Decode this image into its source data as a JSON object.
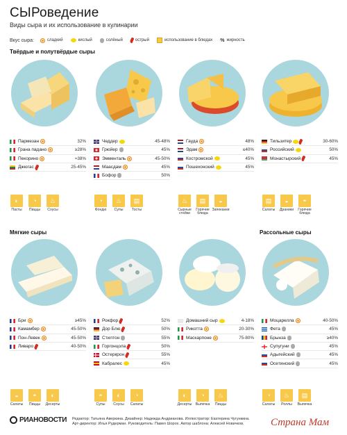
{
  "header": {
    "title": "СЫРоведение",
    "subtitle": "Виды сыра и их использование в кулинарии"
  },
  "legend": {
    "label": "Вкус сыра:",
    "sweet": "сладкий",
    "sour": "кислый",
    "salty": "солёный",
    "hot": "острый",
    "cooking": "использование в блюдах",
    "fat": "жирность"
  },
  "sections": {
    "hard": "Твёрдые и полутвёрдые сыры",
    "soft": "Мягкие сыры",
    "brine": "Рассольные сыры"
  },
  "groups": [
    {
      "id": "g1",
      "cheeses": [
        {
          "name": "Пармезан",
          "flag": "it",
          "tags": [
            "sweet"
          ],
          "fat": "32%"
        },
        {
          "name": "Грана падано",
          "flag": "it",
          "tags": [
            "sweet"
          ],
          "fat": "≥28%"
        },
        {
          "name": "Пекорино",
          "flag": "it",
          "tags": [
            "sweet"
          ],
          "fat": "≈38%"
        },
        {
          "name": "Джюгас",
          "flag": "lt",
          "tags": [
            "hot"
          ],
          "fat": "25-45%"
        }
      ],
      "uses": [
        "Пасты",
        "Пиццы",
        "Соусы"
      ]
    },
    {
      "id": "g2",
      "cheeses": [
        {
          "name": "Чеддер",
          "flag": "gb",
          "tags": [
            "sour"
          ],
          "fat": "45-48%"
        },
        {
          "name": "Грюйер",
          "flag": "ch",
          "tags": [
            "salty"
          ],
          "fat": "45%"
        },
        {
          "name": "Эмменталь",
          "flag": "ch",
          "tags": [
            "sweet"
          ],
          "fat": "45-50%"
        },
        {
          "name": "Маасдам",
          "flag": "nl",
          "tags": [
            "sweet"
          ],
          "fat": "45%"
        },
        {
          "name": "Бофор",
          "flag": "fr",
          "tags": [
            "salty"
          ],
          "fat": "50%"
        }
      ],
      "uses": [
        "Фондю",
        "Супы",
        "Тосты"
      ]
    },
    {
      "id": "g3",
      "cheeses": [
        {
          "name": "Гауда",
          "flag": "nl",
          "tags": [
            "sweet"
          ],
          "fat": "48%"
        },
        {
          "name": "Эдам",
          "flag": "nl",
          "tags": [
            "sweet"
          ],
          "fat": "≤40%"
        },
        {
          "name": "Костромской",
          "flag": "ru",
          "tags": [
            "sour"
          ],
          "fat": "45%"
        },
        {
          "name": "Пошехонский",
          "flag": "ru",
          "tags": [
            "sour"
          ],
          "fat": "45%"
        }
      ],
      "uses": [
        "Сырные стейки",
        "Горячие блюда",
        "Запеканки"
      ]
    },
    {
      "id": "g4",
      "cheeses": [
        {
          "name": "Тильзитер",
          "flag": "de",
          "tags": [
            "sour",
            "hot"
          ],
          "fat": "30-60%"
        },
        {
          "name": "Российский",
          "flag": "ru",
          "tags": [
            "sour"
          ],
          "fat": "50%"
        },
        {
          "name": "Монастырский",
          "flag": "by",
          "tags": [
            "hot"
          ],
          "fat": "45%"
        }
      ],
      "uses": [
        "Салаты",
        "Драники",
        "Горячие блюда"
      ]
    },
    {
      "id": "g5",
      "cheeses": [
        {
          "name": "Бри",
          "flag": "fr",
          "tags": [
            "sweet"
          ],
          "fat": "≥45%"
        },
        {
          "name": "Камамбер",
          "flag": "fr",
          "tags": [
            "sweet"
          ],
          "fat": "45-50%"
        },
        {
          "name": "Пон-Левек",
          "flag": "fr",
          "tags": [
            "sweet"
          ],
          "fat": "45-50%"
        },
        {
          "name": "Ливаро",
          "flag": "fr",
          "tags": [
            "hot"
          ],
          "fat": "40-50%"
        }
      ],
      "uses": [
        "Салаты",
        "Пиццы",
        "Десерты"
      ]
    },
    {
      "id": "g6",
      "cheeses": [
        {
          "name": "Рокфор",
          "flag": "fr",
          "tags": [
            "hot"
          ],
          "fat": "52%"
        },
        {
          "name": "Дор Блю",
          "flag": "de",
          "tags": [
            "hot"
          ],
          "fat": "50%"
        },
        {
          "name": "Стилтон",
          "flag": "gb",
          "tags": [
            "salty"
          ],
          "fat": "55%"
        },
        {
          "name": "Горгонцола",
          "flag": "it",
          "tags": [
            "hot"
          ],
          "fat": "50%"
        },
        {
          "name": "Остеркрон",
          "flag": "dk",
          "tags": [
            "hot"
          ],
          "fat": "55%"
        },
        {
          "name": "Кабралес",
          "flag": "es",
          "tags": [
            "sour"
          ],
          "fat": "45%"
        }
      ],
      "uses": [
        "Супы",
        "Соусы",
        "Салаты"
      ]
    },
    {
      "id": "g7",
      "cheeses": [
        {
          "name": "Домашний сыр",
          "flag": "none",
          "tags": [
            "sour"
          ],
          "fat": "4-18%"
        },
        {
          "name": "Рикотта",
          "flag": "it",
          "tags": [
            "sweet"
          ],
          "fat": "20-30%"
        },
        {
          "name": "Маскарпоне",
          "flag": "it",
          "tags": [
            "sweet"
          ],
          "fat": "75-80%"
        }
      ],
      "uses": [
        "Десерты",
        "Выпечка",
        "Пиццы"
      ]
    },
    {
      "id": "g8",
      "cheeses": [
        {
          "name": "Моцарелла",
          "flag": "it",
          "tags": [
            "sweet"
          ],
          "fat": "40-50%"
        },
        {
          "name": "Фета",
          "flag": "gr",
          "tags": [
            "salty"
          ],
          "fat": "45%"
        },
        {
          "name": "Брынза",
          "flag": "ro",
          "tags": [
            "salty"
          ],
          "fat": "≥40%"
        },
        {
          "name": "Сулугуни",
          "flag": "ge",
          "tags": [
            "salty"
          ],
          "fat": "45%"
        },
        {
          "name": "Адыгейский",
          "flag": "ru",
          "tags": [
            "salty"
          ],
          "fat": "45%"
        },
        {
          "name": "Осетинский",
          "flag": "ru",
          "tags": [
            "salty"
          ],
          "fat": "45%"
        }
      ],
      "uses": [
        "Салаты",
        "Роллы",
        "Выпечка"
      ]
    }
  ],
  "footer": {
    "logo": "РИАНОВОСТИ",
    "credits_1": "Редактор: Татьяна Аверкина. Дизайнер: Надежда Андрианова. Иллюстратор: Екатерина Чугункина.",
    "credits_2": "Арт-директор: Илья Рудерман. Руководитель: Павел Шорох. Автор шаблона: Алексей Новичков.",
    "watermark": "Страна Мам"
  },
  "colors": {
    "plate": "#aad6dd",
    "cheese": "#f7c84a",
    "use_tile": "#f7c84a",
    "sweet": "#f39c12",
    "sour": "#f5d70a",
    "salty": "#aaaaaa",
    "hot": "#d62b1f"
  }
}
